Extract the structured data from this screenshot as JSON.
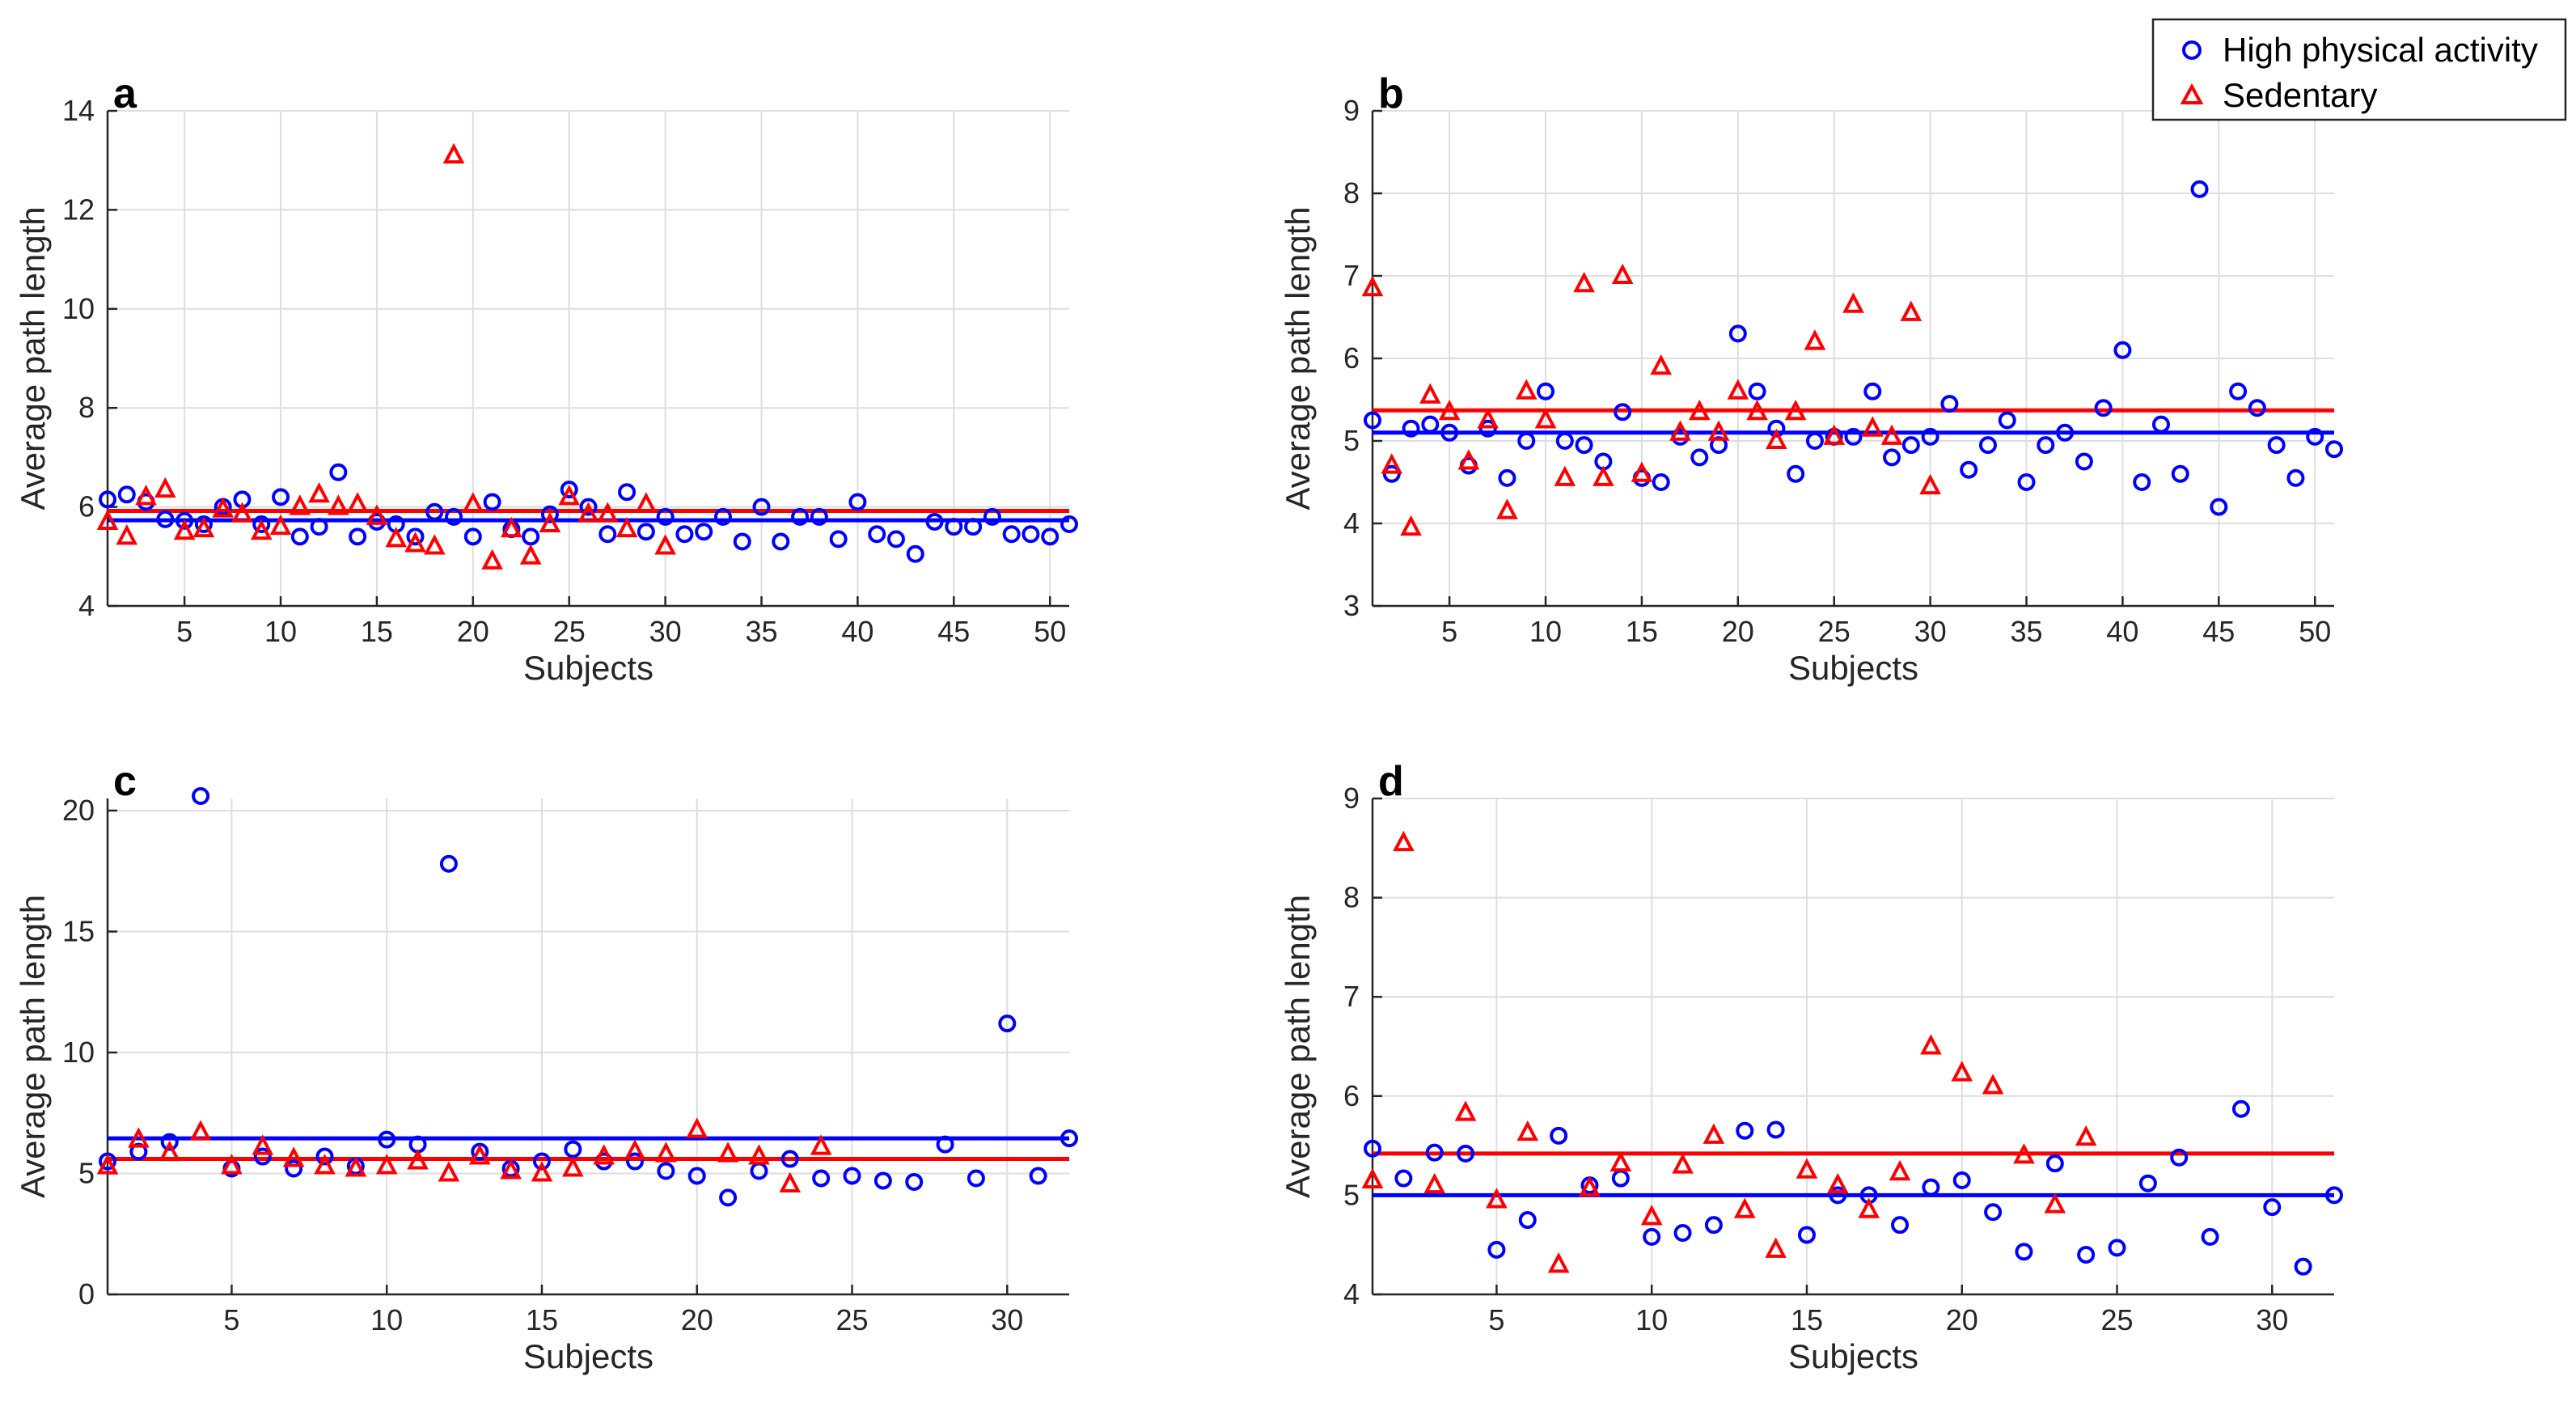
{
  "colors": {
    "high": "#0000ff",
    "sedentary": "#ff0000"
  },
  "legend": {
    "high_label": "High physical activity",
    "sedentary_label": "Sedentary"
  },
  "chart_data": [
    {
      "panel": "a",
      "type": "scatter",
      "xlabel": "Subjects",
      "ylabel": "Average path length",
      "xlim": [
        1,
        51
      ],
      "ylim": [
        4,
        14
      ],
      "xticks": [
        5,
        10,
        15,
        20,
        25,
        30,
        35,
        40,
        45,
        50
      ],
      "yticks": [
        4,
        6,
        8,
        10,
        12,
        14
      ],
      "grid": true,
      "series": [
        {
          "name": "High physical activity",
          "x": [
            1,
            2,
            3,
            4,
            5,
            6,
            7,
            8,
            9,
            10,
            11,
            12,
            13,
            14,
            15,
            16,
            17,
            18,
            19,
            20,
            21,
            22,
            23,
            24,
            25,
            26,
            27,
            28,
            29,
            30,
            31,
            32,
            33,
            34,
            35,
            36,
            37,
            38,
            39,
            40,
            41,
            42,
            43,
            44,
            45,
            46,
            47,
            48,
            49,
            50,
            51
          ],
          "values": [
            6.15,
            6.25,
            6.1,
            5.75,
            5.72,
            5.65,
            6.0,
            6.15,
            5.65,
            6.2,
            5.4,
            5.6,
            6.7,
            5.4,
            5.7,
            5.65,
            5.4,
            5.9,
            5.8,
            5.4,
            6.1,
            5.55,
            5.4,
            5.85,
            6.35,
            6.0,
            5.45,
            6.3,
            5.5,
            5.8,
            5.45,
            5.5,
            5.8,
            5.3,
            6.0,
            5.3,
            5.8,
            5.8,
            5.35,
            6.1,
            5.45,
            5.35,
            5.05,
            5.7,
            5.6,
            5.6,
            5.8,
            5.45,
            5.45,
            5.4,
            5.65
          ]
        },
        {
          "name": "Sedentary",
          "x": [
            1,
            2,
            3,
            4,
            5,
            6,
            7,
            8,
            9,
            10,
            11,
            12,
            13,
            14,
            15,
            16,
            17,
            18,
            19,
            20,
            21,
            22,
            23,
            24,
            25,
            26,
            27,
            28,
            29,
            30
          ],
          "values": [
            5.7,
            5.4,
            6.2,
            6.35,
            5.5,
            5.55,
            5.95,
            5.85,
            5.5,
            5.6,
            6.0,
            6.25,
            6.0,
            6.05,
            5.8,
            5.35,
            5.25,
            5.2,
            13.1,
            6.05,
            4.9,
            5.55,
            5.0,
            5.65,
            6.2,
            5.85,
            5.85,
            5.55,
            6.05,
            5.2
          ]
        }
      ],
      "means": {
        "high": 5.73,
        "sedentary": 5.92
      }
    },
    {
      "panel": "b",
      "type": "scatter",
      "xlabel": "Subjects",
      "ylabel": "Average path length",
      "xlim": [
        1,
        51
      ],
      "ylim": [
        3,
        9
      ],
      "xticks": [
        5,
        10,
        15,
        20,
        25,
        30,
        35,
        40,
        45,
        50
      ],
      "yticks": [
        3,
        4,
        5,
        6,
        7,
        8,
        9
      ],
      "grid": true,
      "series": [
        {
          "name": "High physical activity",
          "x": [
            1,
            2,
            3,
            4,
            5,
            6,
            7,
            8,
            9,
            10,
            11,
            12,
            13,
            14,
            15,
            16,
            17,
            18,
            19,
            20,
            21,
            22,
            23,
            24,
            25,
            26,
            27,
            28,
            29,
            30,
            31,
            32,
            33,
            34,
            35,
            36,
            37,
            38,
            39,
            40,
            41,
            42,
            43,
            44,
            45,
            46,
            47,
            48,
            49,
            50,
            51
          ],
          "values": [
            5.25,
            4.6,
            5.15,
            5.2,
            5.1,
            4.7,
            5.15,
            4.55,
            5.0,
            5.6,
            5.0,
            4.95,
            4.75,
            5.35,
            4.55,
            4.5,
            5.05,
            4.8,
            4.95,
            6.3,
            5.6,
            5.15,
            4.6,
            5.0,
            5.05,
            5.05,
            5.6,
            4.8,
            4.95,
            5.05,
            5.45,
            4.65,
            4.95,
            5.25,
            4.5,
            4.95,
            5.1,
            4.75,
            5.4,
            6.1,
            4.5,
            5.2,
            4.6,
            8.05,
            4.2,
            5.6,
            5.4,
            4.95,
            4.55,
            5.05,
            4.9
          ]
        },
        {
          "name": "Sedentary",
          "x": [
            1,
            2,
            3,
            4,
            5,
            6,
            7,
            8,
            9,
            10,
            11,
            12,
            13,
            14,
            15,
            16,
            17,
            18,
            19,
            20,
            21,
            22,
            23,
            24,
            25,
            26,
            27,
            28,
            29,
            30
          ],
          "values": [
            6.85,
            4.7,
            3.95,
            5.55,
            5.35,
            4.75,
            5.25,
            4.15,
            5.6,
            5.25,
            4.55,
            6.9,
            4.55,
            7.0,
            4.6,
            5.9,
            5.1,
            5.35,
            5.1,
            5.6,
            5.35,
            5.0,
            5.35,
            6.2,
            5.05,
            6.65,
            5.15,
            5.05,
            6.55,
            4.45
          ]
        }
      ],
      "means": {
        "high": 5.1,
        "sedentary": 5.37
      }
    },
    {
      "panel": "c",
      "type": "scatter",
      "xlabel": "Subjects",
      "ylabel": "Average path length",
      "xlim": [
        1,
        32
      ],
      "ylim": [
        0,
        20.5
      ],
      "xticks": [
        5,
        10,
        15,
        20,
        25,
        30
      ],
      "yticks": [
        0,
        5,
        10,
        15,
        20
      ],
      "grid": true,
      "series": [
        {
          "name": "High physical activity",
          "x": [
            1,
            2,
            3,
            4,
            5,
            6,
            7,
            8,
            9,
            10,
            11,
            12,
            13,
            14,
            15,
            16,
            17,
            18,
            19,
            20,
            21,
            22,
            23,
            24,
            25,
            26,
            27,
            28,
            29,
            30,
            31,
            32
          ],
          "values": [
            5.5,
            5.9,
            6.3,
            20.6,
            5.2,
            5.7,
            5.2,
            5.7,
            5.3,
            6.4,
            6.2,
            17.8,
            5.9,
            5.2,
            5.5,
            6.0,
            5.5,
            5.5,
            5.1,
            4.9,
            4.0,
            5.1,
            5.6,
            4.8,
            4.9,
            4.7,
            4.65,
            6.2,
            4.8,
            11.2,
            4.9,
            6.45
          ]
        },
        {
          "name": "Sedentary",
          "x": [
            1,
            2,
            3,
            4,
            5,
            6,
            7,
            8,
            9,
            10,
            11,
            12,
            13,
            14,
            15,
            16,
            17,
            18,
            19,
            20,
            21,
            22,
            23,
            24
          ],
          "values": [
            5.3,
            6.4,
            5.85,
            6.7,
            5.3,
            6.1,
            5.6,
            5.3,
            5.2,
            5.3,
            5.5,
            5.0,
            5.7,
            5.1,
            5.0,
            5.2,
            5.7,
            5.9,
            5.8,
            6.8,
            5.8,
            5.7,
            4.55,
            6.1
          ]
        }
      ],
      "means": {
        "high": 6.45,
        "sedentary": 5.6
      }
    },
    {
      "panel": "d",
      "type": "scatter",
      "xlabel": "Subjects",
      "ylabel": "Average path length",
      "xlim": [
        1,
        32
      ],
      "ylim": [
        4,
        9
      ],
      "xticks": [
        5,
        10,
        15,
        20,
        25,
        30
      ],
      "yticks": [
        4,
        5,
        6,
        7,
        8,
        9
      ],
      "grid": true,
      "series": [
        {
          "name": "High physical activity",
          "x": [
            1,
            2,
            3,
            4,
            5,
            6,
            7,
            8,
            9,
            10,
            11,
            12,
            13,
            14,
            15,
            16,
            17,
            18,
            19,
            20,
            21,
            22,
            23,
            24,
            25,
            26,
            27,
            28,
            29,
            30,
            31,
            32
          ],
          "values": [
            5.47,
            5.17,
            5.43,
            5.42,
            4.45,
            4.75,
            5.6,
            5.1,
            5.17,
            4.58,
            4.62,
            4.7,
            5.65,
            5.66,
            4.6,
            5.0,
            5.0,
            4.7,
            5.08,
            5.15,
            4.83,
            4.43,
            5.32,
            4.4,
            4.47,
            5.12,
            5.38,
            4.58,
            5.87,
            4.88,
            4.28,
            5.0
          ]
        },
        {
          "name": "Sedentary",
          "x": [
            1,
            2,
            3,
            4,
            5,
            6,
            7,
            8,
            9,
            10,
            11,
            12,
            13,
            14,
            15,
            16,
            17,
            18,
            19,
            20,
            21,
            22,
            23,
            24
          ],
          "values": [
            5.15,
            8.55,
            5.1,
            5.83,
            4.95,
            5.63,
            4.3,
            5.07,
            5.32,
            4.78,
            5.3,
            5.6,
            4.85,
            4.45,
            5.25,
            5.1,
            4.85,
            5.23,
            6.5,
            6.23,
            6.1,
            5.4,
            4.9,
            5.58
          ]
        }
      ],
      "means": {
        "high": 5.0,
        "sedentary": 5.42
      }
    }
  ]
}
